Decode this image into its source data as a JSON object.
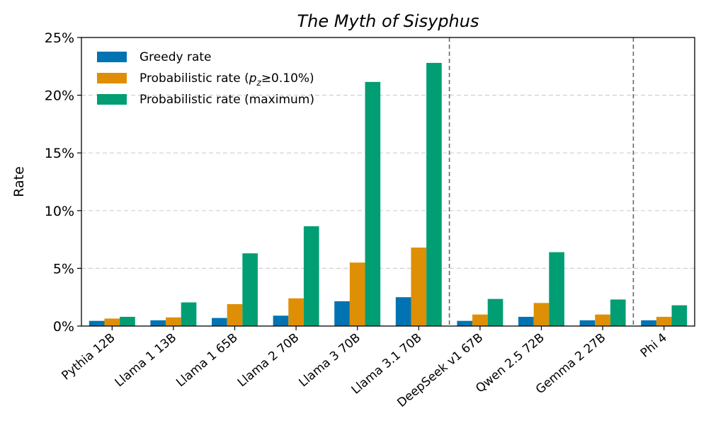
{
  "chart_data": {
    "type": "bar",
    "title": "The Myth of Sisyphus",
    "xlabel": "",
    "ylabel": "Rate",
    "ylim": [
      0,
      25
    ],
    "y_ticks": [
      "0%",
      "5%",
      "10%",
      "15%",
      "20%",
      "25%"
    ],
    "grid": "horizontal dashed",
    "legend_position": "top-left",
    "categories": [
      "Pythia 12B",
      "Llama 1 13B",
      "Llama 1 65B",
      "Llama 2 70B",
      "Llama 3 70B",
      "Llama 3.1 70B",
      "DeepSeek v1 67B",
      "Qwen 2.5 72B",
      "Gemma 2 27B",
      "Phi 4"
    ],
    "group_separators_after": [
      "Llama 3.1 70B",
      "Gemma 2 27B"
    ],
    "series": [
      {
        "name": "Greedy rate",
        "color": "#0173b2",
        "values": [
          0.45,
          0.5,
          0.7,
          0.9,
          2.15,
          2.5,
          0.45,
          0.8,
          0.5,
          0.5
        ]
      },
      {
        "name_parts": [
          "Probabilistic rate (",
          "p",
          "z",
          "≥0.10%)"
        ],
        "color": "#de8f05",
        "values": [
          0.65,
          0.75,
          1.9,
          2.4,
          5.5,
          6.8,
          1.0,
          2.0,
          1.0,
          0.8
        ]
      },
      {
        "name": "Probabilistic rate (maximum)",
        "color": "#029e73",
        "values": [
          0.8,
          2.05,
          6.3,
          8.65,
          21.15,
          22.8,
          2.35,
          6.4,
          2.3,
          1.8
        ]
      }
    ]
  }
}
